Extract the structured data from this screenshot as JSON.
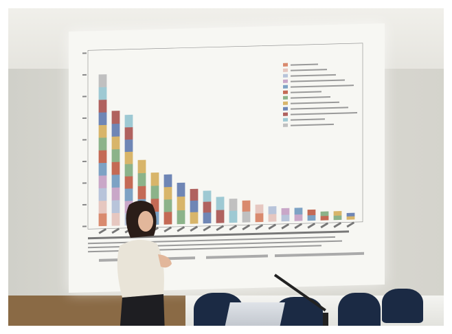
{
  "scene": {
    "description_free": true
  },
  "chart_data": {
    "type": "bar",
    "stacked": true,
    "categories": [
      "",
      "",
      "",
      "",
      "",
      "",
      "",
      "",
      "",
      "",
      "",
      "",
      "",
      "",
      "",
      "",
      "",
      "",
      "",
      ""
    ],
    "values": [
      70,
      53,
      51,
      30,
      24,
      23,
      19,
      16,
      15,
      12,
      11,
      10,
      8,
      7,
      6,
      6,
      5,
      4,
      4,
      3
    ],
    "ylim": [
      0,
      80
    ],
    "grid": false,
    "legend_position": "top-right",
    "segment_colors": [
      "#d98a6e",
      "#e6c7c0",
      "#b8c4da",
      "#c9a7c8",
      "#7da2c4",
      "#c46a55",
      "#8cb38a",
      "#d8b56a",
      "#6f86b5",
      "#b0625f",
      "#9ec9d3",
      "#c0c0c0"
    ]
  },
  "colors": {
    "screen": "#f7f7f3",
    "chairs": "#1b2a44",
    "presenter_top": "#e9e4d8",
    "presenter_hair": "#2a1d18"
  }
}
